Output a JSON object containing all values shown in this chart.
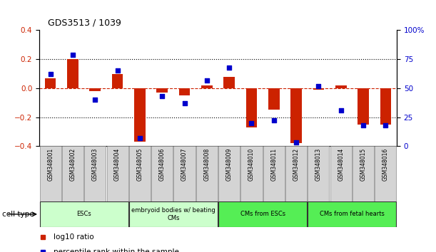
{
  "title": "GDS3513 / 1039",
  "samples": [
    "GSM348001",
    "GSM348002",
    "GSM348003",
    "GSM348004",
    "GSM348005",
    "GSM348006",
    "GSM348007",
    "GSM348008",
    "GSM348009",
    "GSM348010",
    "GSM348011",
    "GSM348012",
    "GSM348013",
    "GSM348014",
    "GSM348015",
    "GSM348016"
  ],
  "log10_ratio": [
    0.07,
    0.2,
    -0.02,
    0.1,
    -0.37,
    -0.03,
    -0.05,
    0.02,
    0.08,
    -0.27,
    -0.15,
    -0.38,
    -0.01,
    0.02,
    -0.25,
    -0.25
  ],
  "percentile_rank": [
    62,
    79,
    40,
    65,
    7,
    43,
    37,
    57,
    68,
    20,
    22,
    3,
    52,
    31,
    18,
    18
  ],
  "cell_type_groups": [
    {
      "label": "ESCs",
      "start": 0,
      "end": 3,
      "color": "#ccffcc"
    },
    {
      "label": "embryoid bodies w/ beating\nCMs",
      "start": 4,
      "end": 7,
      "color": "#ccffcc"
    },
    {
      "label": "CMs from ESCs",
      "start": 8,
      "end": 11,
      "color": "#55ee55"
    },
    {
      "label": "CMs from fetal hearts",
      "start": 12,
      "end": 15,
      "color": "#55ee55"
    }
  ],
  "ylim_left": [
    -0.4,
    0.4
  ],
  "ylim_right": [
    0,
    100
  ],
  "yticks_left": [
    -0.4,
    -0.2,
    0.0,
    0.2,
    0.4
  ],
  "yticks_right": [
    0,
    25,
    50,
    75,
    100
  ],
  "bar_color": "#cc2200",
  "dot_color": "#0000cc",
  "zero_line_color": "#cc2200",
  "grid_color": "#000000",
  "label_bg": "#d4d4d4",
  "label_edge": "#888888"
}
